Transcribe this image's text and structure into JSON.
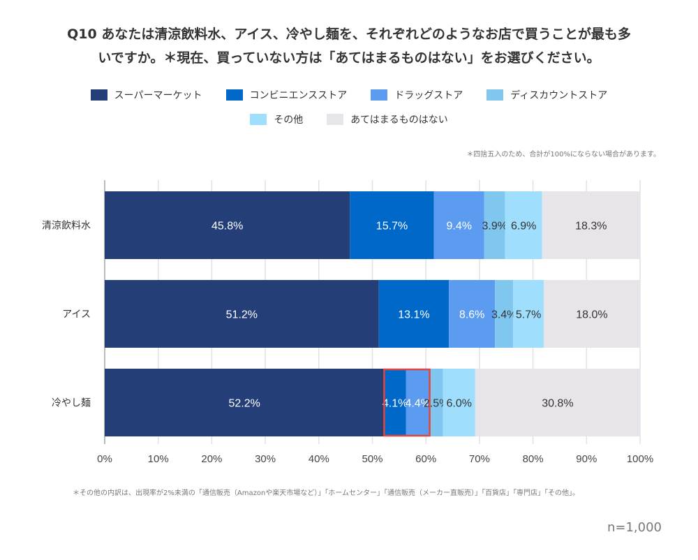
{
  "title_line1": "Q10 あなたは清涼飲料水、アイス、冷やし麺を、それぞれどのようなお店で買うことが最も多",
  "title_line2": "いですか。＊現在、買っていない方は「あてはまるものはない」をお選びください。",
  "note_rounding": "＊四捨五入のため、合計が100%にならない場合があります。",
  "note_other": "＊その他の内訳は、出現率が2%未満の「通信販売（Amazonや楽天市場など）」「ホームセンター」「通信販売（メーカー直販売）」「百貨店」「専門店」「その他」。",
  "sample_size": "n=1,000",
  "chart_data": {
    "type": "bar",
    "orientation": "horizontal",
    "stacked": true,
    "categories": [
      "清涼飲料水",
      "アイス",
      "冷やし麺"
    ],
    "series": [
      {
        "name": "スーパーマーケット",
        "color": "#243f78",
        "values": [
          45.8,
          51.2,
          52.2
        ]
      },
      {
        "name": "コンビニエンスストア",
        "color": "#0068c8",
        "values": [
          15.7,
          13.1,
          4.1
        ]
      },
      {
        "name": "ドラッグストア",
        "color": "#5b9bf0",
        "values": [
          9.4,
          8.6,
          4.4
        ]
      },
      {
        "name": "ディスカウントストア",
        "color": "#80c7f0",
        "values": [
          3.9,
          3.4,
          2.5
        ]
      },
      {
        "name": "その他",
        "color": "#9fdefc",
        "values": [
          6.9,
          5.7,
          6.0
        ]
      },
      {
        "name": "あてはまるものはない",
        "color": "#e7e5e9",
        "values": [
          18.3,
          18.0,
          30.8
        ]
      }
    ],
    "xlim": [
      0,
      100
    ],
    "xticks": [
      "0%",
      "10%",
      "20%",
      "30%",
      "40%",
      "50%",
      "60%",
      "70%",
      "80%",
      "90%",
      "100%"
    ],
    "grid": true,
    "legend": "top-center",
    "highlight": {
      "category": "冷やし麺",
      "series": [
        "コンビニエンスストア",
        "ドラッグストア"
      ],
      "color": "#e0463c"
    }
  }
}
